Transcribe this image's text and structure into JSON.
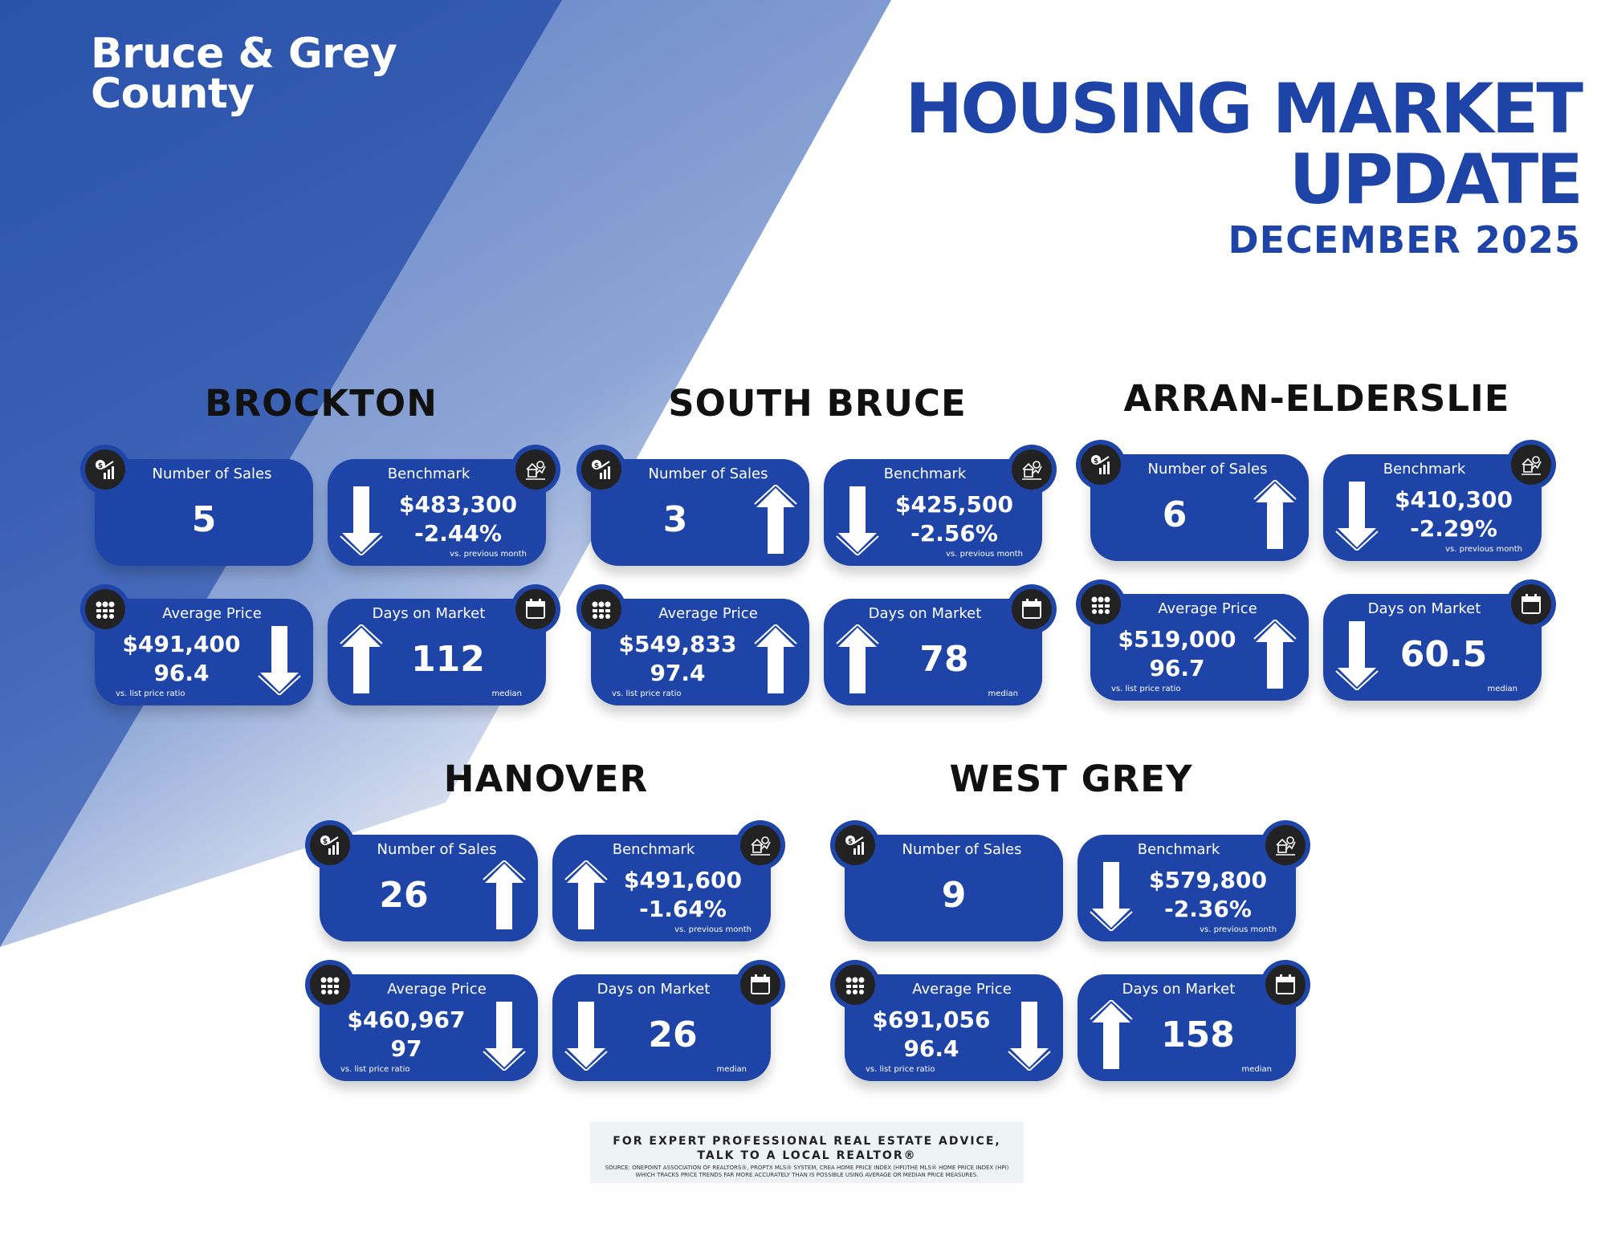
{
  "brand": {
    "line1": "Bruce & Grey",
    "line2": "County"
  },
  "header": {
    "title_line1": "HOUSING MARKET",
    "title_line2": "UPDATE",
    "date": "DECEMBER 2025"
  },
  "colors": {
    "primary": "#1d44a6",
    "icon_bg": "#222222"
  },
  "icons": {
    "sales": "dollar-bar-chart-icon",
    "benchmark": "house-graph-icon",
    "average": "dollar-people-icon",
    "days": "calendar-icon"
  },
  "regions": [
    {
      "name": "BROCKTON",
      "sales": {
        "label": "Number of Sales",
        "value": "5",
        "trend": "none"
      },
      "benchmark": {
        "label": "Benchmark",
        "value": "$483,300",
        "change": "-2.44%",
        "note": "vs. previous month",
        "trend": "down"
      },
      "average": {
        "label": "Average Price",
        "value": "$491,400",
        "ratio": "96.4",
        "note": "vs. list price ratio",
        "trend": "down"
      },
      "days": {
        "label": "Days on Market",
        "value": "112",
        "note": "median",
        "trend": "up"
      }
    },
    {
      "name": "SOUTH BRUCE",
      "sales": {
        "label": "Number of Sales",
        "value": "3",
        "trend": "up"
      },
      "benchmark": {
        "label": "Benchmark",
        "value": "$425,500",
        "change": "-2.56%",
        "note": "vs. previous month",
        "trend": "down"
      },
      "average": {
        "label": "Average Price",
        "value": "$549,833",
        "ratio": "97.4",
        "note": "vs. list price ratio",
        "trend": "up"
      },
      "days": {
        "label": "Days on Market",
        "value": "78",
        "note": "median",
        "trend": "up"
      }
    },
    {
      "name": "ARRAN-ELDERSLIE",
      "sales": {
        "label": "Number of Sales",
        "value": "6",
        "trend": "up"
      },
      "benchmark": {
        "label": "Benchmark",
        "value": "$410,300",
        "change": "-2.29%",
        "note": "vs. previous month",
        "trend": "down"
      },
      "average": {
        "label": "Average Price",
        "value": "$519,000",
        "ratio": "96.7",
        "note": "vs. list price ratio",
        "trend": "up"
      },
      "days": {
        "label": "Days on Market",
        "value": "60.5",
        "note": "median",
        "trend": "down"
      }
    },
    {
      "name": "HANOVER",
      "sales": {
        "label": "Number of Sales",
        "value": "26",
        "trend": "up"
      },
      "benchmark": {
        "label": "Benchmark",
        "value": "$491,600",
        "change": "-1.64%",
        "note": "vs. previous month",
        "trend": "up"
      },
      "average": {
        "label": "Average Price",
        "value": "$460,967",
        "ratio": "97",
        "note": "vs. list price ratio",
        "trend": "down"
      },
      "days": {
        "label": "Days on Market",
        "value": "26",
        "note": "median",
        "trend": "down"
      }
    },
    {
      "name": "WEST GREY",
      "sales": {
        "label": "Number of Sales",
        "value": "9",
        "trend": "none"
      },
      "benchmark": {
        "label": "Benchmark",
        "value": "$579,800",
        "change": "-2.36%",
        "note": "vs. previous month",
        "trend": "down"
      },
      "average": {
        "label": "Average Price",
        "value": "$691,056",
        "ratio": "96.4",
        "note": "vs. list price ratio",
        "trend": "down"
      },
      "days": {
        "label": "Days on Market",
        "value": "158",
        "note": "median",
        "trend": "up"
      }
    }
  ],
  "footer": {
    "line1": "FOR EXPERT PROFESSIONAL REAL ESTATE ADVICE,",
    "line2": "TALK TO A LOCAL REALTOR®",
    "source": "SOURCE: ONEPOINT ASSOCIATION OF REALTORS®, PROPTX MLS® SYSTEM, CREA HOME PRICE INDEX (HPI)THE MLS® HOME PRICE INDEX (HPI) WHICH TRACKS PRICE TRENDS FAR MORE ACCURATELY THAN IS POSSIBLE USING AVERAGE OR MEDIAN PRICE MEASURES."
  }
}
